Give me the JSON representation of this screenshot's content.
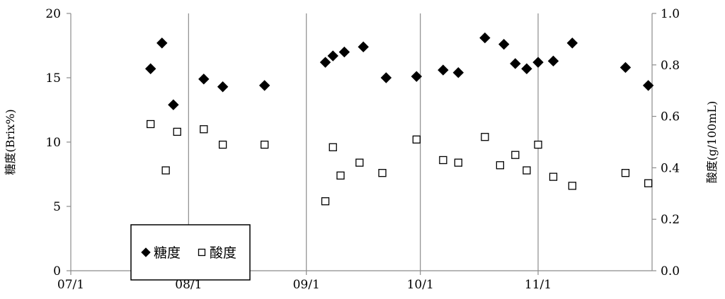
{
  "chart_data": {
    "type": "scatter",
    "title": "",
    "xlabel": "",
    "ylabel": "糖度(Brix%)",
    "y2label": "酸度(g/100mL)",
    "xlim": [
      "07/1",
      "12/1"
    ],
    "ylim": [
      0,
      20
    ],
    "y2lim": [
      0.0,
      1.0
    ],
    "x_ticks": [
      "07/1",
      "08/1",
      "09/1",
      "10/1",
      "11/1"
    ],
    "y_ticks": [
      "0",
      "5",
      "10",
      "15",
      "20"
    ],
    "y2_ticks": [
      "0.0",
      "0.2",
      "0.4",
      "0.6",
      "0.8",
      "1.0"
    ],
    "grid": "vertical lines at month starts",
    "legend_position": "bottom-left",
    "series": [
      {
        "name": "糖度",
        "axis": "left",
        "marker": "filled-diamond",
        "color": "#000000",
        "points": [
          {
            "x": "07/22",
            "y": 15.7
          },
          {
            "x": "07/25",
            "y": 17.7
          },
          {
            "x": "07/28",
            "y": 12.9
          },
          {
            "x": "08/05",
            "y": 14.9
          },
          {
            "x": "08/10",
            "y": 14.3
          },
          {
            "x": "08/21",
            "y": 14.4
          },
          {
            "x": "09/06",
            "y": 16.2
          },
          {
            "x": "09/08",
            "y": 16.7
          },
          {
            "x": "09/11",
            "y": 17.0
          },
          {
            "x": "09/16",
            "y": 17.4
          },
          {
            "x": "09/22",
            "y": 15.0
          },
          {
            "x": "09/30",
            "y": 15.1
          },
          {
            "x": "10/07",
            "y": 15.6
          },
          {
            "x": "10/11",
            "y": 15.4
          },
          {
            "x": "10/18",
            "y": 18.1
          },
          {
            "x": "10/23",
            "y": 17.6
          },
          {
            "x": "10/26",
            "y": 16.1
          },
          {
            "x": "10/29",
            "y": 15.7
          },
          {
            "x": "11/01",
            "y": 16.2
          },
          {
            "x": "11/05",
            "y": 16.3
          },
          {
            "x": "11/10",
            "y": 17.7
          },
          {
            "x": "11/24",
            "y": 15.8
          },
          {
            "x": "11/30",
            "y": 14.4
          }
        ]
      },
      {
        "name": "酸度",
        "axis": "right",
        "marker": "open-square",
        "color": "#000000",
        "points": [
          {
            "x": "07/22",
            "y": 0.57
          },
          {
            "x": "07/26",
            "y": 0.39
          },
          {
            "x": "07/29",
            "y": 0.54
          },
          {
            "x": "08/05",
            "y": 0.55
          },
          {
            "x": "08/10",
            "y": 0.49
          },
          {
            "x": "08/21",
            "y": 0.49
          },
          {
            "x": "09/06",
            "y": 0.27
          },
          {
            "x": "09/08",
            "y": 0.48
          },
          {
            "x": "09/10",
            "y": 0.37
          },
          {
            "x": "09/15",
            "y": 0.42
          },
          {
            "x": "09/21",
            "y": 0.38
          },
          {
            "x": "09/30",
            "y": 0.51
          },
          {
            "x": "10/07",
            "y": 0.43
          },
          {
            "x": "10/11",
            "y": 0.42
          },
          {
            "x": "10/18",
            "y": 0.52
          },
          {
            "x": "10/22",
            "y": 0.41
          },
          {
            "x": "10/26",
            "y": 0.45
          },
          {
            "x": "10/29",
            "y": 0.39
          },
          {
            "x": "11/01",
            "y": 0.49
          },
          {
            "x": "11/05",
            "y": 0.365
          },
          {
            "x": "11/10",
            "y": 0.33
          },
          {
            "x": "11/24",
            "y": 0.38
          },
          {
            "x": "11/30",
            "y": 0.34
          }
        ]
      }
    ]
  }
}
